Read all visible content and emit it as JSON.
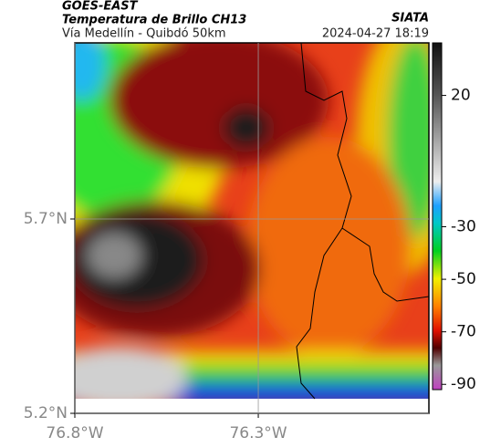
{
  "header": {
    "title": "GOES-EAST",
    "subtitle": "Temperatura de Brillo CH13",
    "source": "SIATA",
    "route": "Vía Medellín - Quibdó 50km",
    "timestamp": "2024-04-27 18:19"
  },
  "map": {
    "xlim": [
      -76.8,
      -75.835
    ],
    "ylim": [
      5.2,
      6.153
    ],
    "xticks": [
      {
        "value": -76.8,
        "label": "76.8°W"
      },
      {
        "value": -76.3,
        "label": "76.3°W"
      }
    ],
    "yticks": [
      {
        "value": 5.2,
        "label": "5.2°N"
      },
      {
        "value": 5.7,
        "label": "5.7°N"
      }
    ],
    "grid": true
  },
  "colorbar": {
    "lim": [
      -92,
      40
    ],
    "ticks": [
      20,
      -30,
      -50,
      -70,
      -90
    ]
  }
}
